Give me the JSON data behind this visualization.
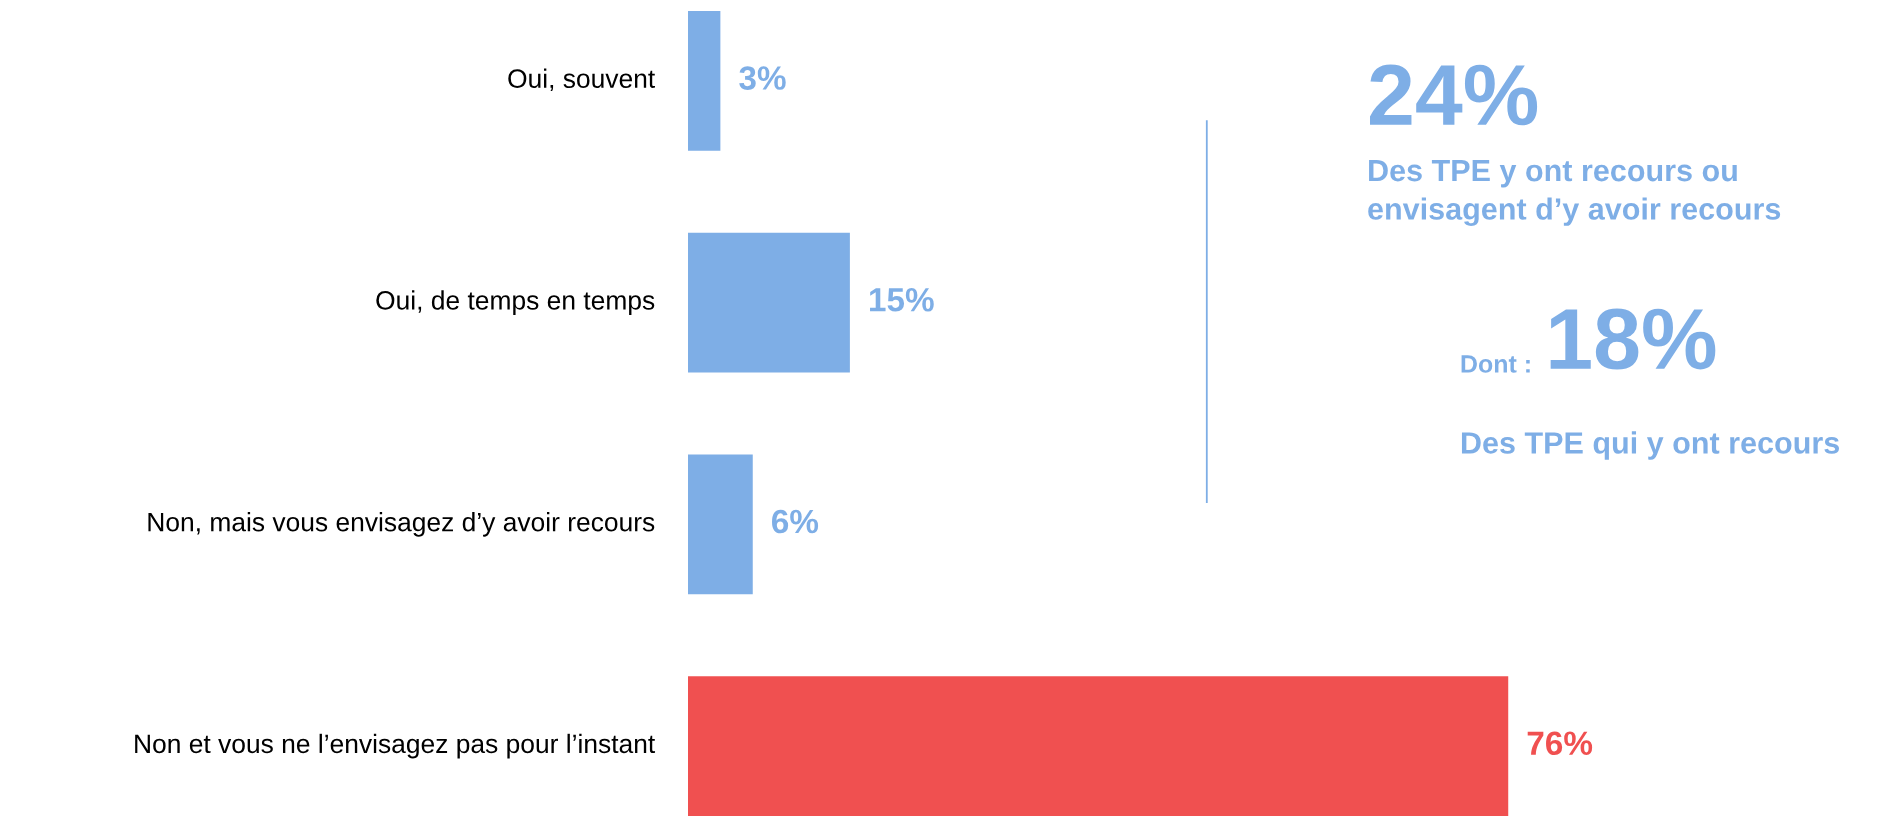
{
  "chart_data": [
    {
      "type": "bar",
      "orientation": "horizontal",
      "categories": [
        "Oui, souvent",
        "Oui, de temps en temps",
        "Non, mais vous envisagez d’y avoir recours",
        "Non et vous ne l’envisagez pas pour l’instant"
      ],
      "values": [
        3,
        15,
        6,
        76
      ],
      "colors": [
        "#7eaee6",
        "#7eaee6",
        "#7eaee6",
        "#f05050"
      ],
      "value_labels": [
        "3%",
        "15%",
        "6%",
        "76%"
      ]
    },
    {
      "type": "other",
      "annotations": [
        "24%",
        "Des TPE y ont recours ou\nenvisagent d’y avoir recours",
        "Dont :",
        "18%",
        "Des TPE qui y ont recours"
      ]
    }
  ]
}
